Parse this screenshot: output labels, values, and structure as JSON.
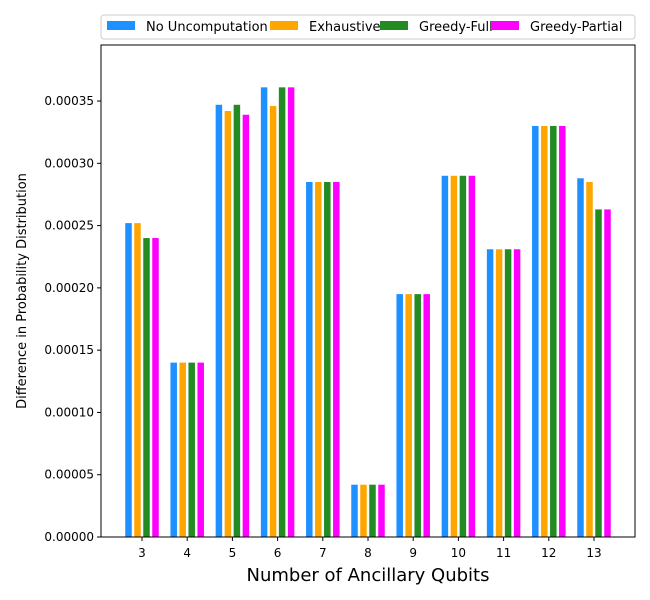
{
  "chart_data": {
    "type": "bar",
    "title": "",
    "xlabel": "Number of Ancillary Qubits",
    "ylabel": "Difference in Probability Distribution",
    "categories": [
      "3",
      "4",
      "5",
      "6",
      "7",
      "8",
      "9",
      "10",
      "11",
      "12",
      "13"
    ],
    "ylim": [
      0,
      0.000395
    ],
    "yticks": [
      "0.00000",
      "0.00005",
      "0.00010",
      "0.00015",
      "0.00020",
      "0.00025",
      "0.00030",
      "0.00035"
    ],
    "legend_position": "top",
    "series": [
      {
        "name": "No Uncomputation",
        "color": "#1e90ff",
        "values": [
          0.000252,
          0.00014,
          0.000347,
          0.000361,
          0.000285,
          4.2e-05,
          0.000195,
          0.00029,
          0.000231,
          0.00033,
          0.000288
        ]
      },
      {
        "name": "Exhaustive",
        "color": "#ffa500",
        "values": [
          0.000252,
          0.00014,
          0.000342,
          0.000346,
          0.000285,
          4.2e-05,
          0.000195,
          0.00029,
          0.000231,
          0.00033,
          0.000285
        ]
      },
      {
        "name": "Greedy-Full",
        "color": "#228b22",
        "values": [
          0.00024,
          0.00014,
          0.000347,
          0.000361,
          0.000285,
          4.2e-05,
          0.000195,
          0.00029,
          0.000231,
          0.00033,
          0.000263
        ]
      },
      {
        "name": "Greedy-Partial",
        "color": "#ff00ff",
        "values": [
          0.00024,
          0.00014,
          0.000339,
          0.000361,
          0.000285,
          4.2e-05,
          0.000195,
          0.00029,
          0.000231,
          0.00033,
          0.000263
        ]
      }
    ]
  }
}
